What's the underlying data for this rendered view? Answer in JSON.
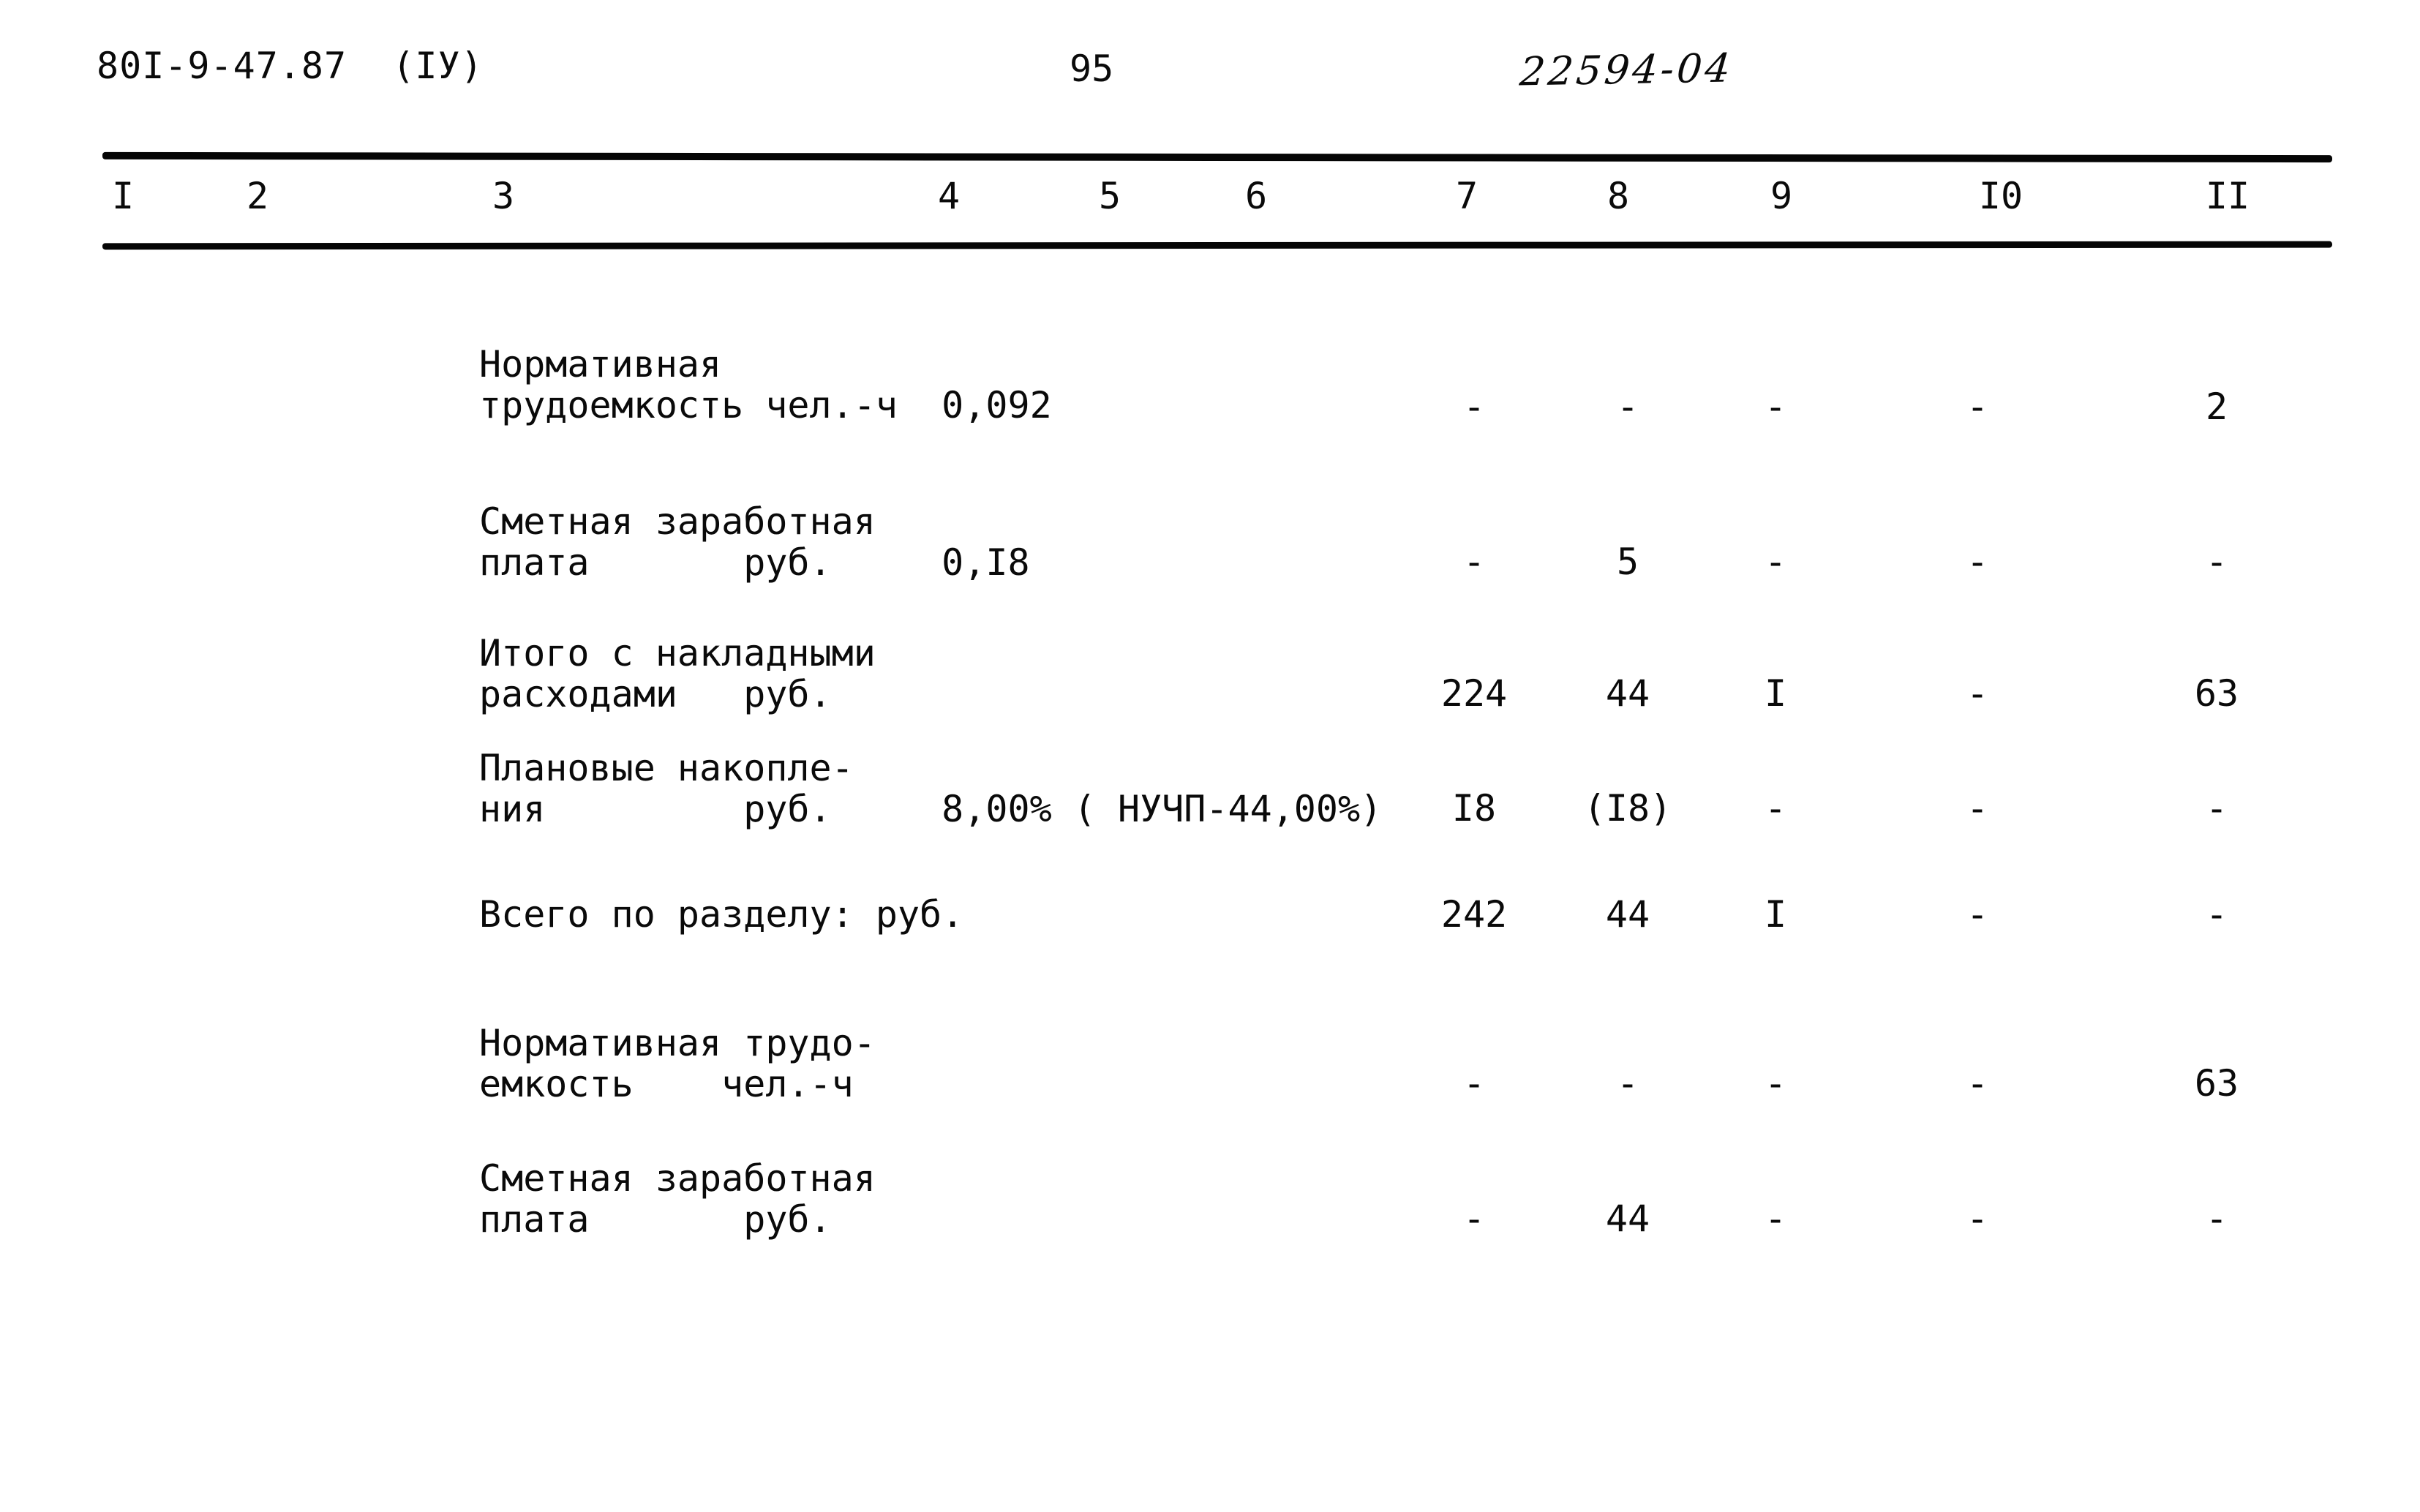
{
  "page": {
    "doc_number": "80I-9-47.87  (IУ)",
    "page_number": "95",
    "handwritten_code": "22594-04"
  },
  "table": {
    "column_headers": [
      "I",
      "2",
      "3",
      "4",
      "5",
      "6",
      "7",
      "8",
      "9",
      "I0",
      "II"
    ],
    "rows": [
      {
        "label_lines": [
          "Нормативная",
          "трудоемкость чел.-ч  0,092"
        ],
        "values": [
          "-",
          "-",
          "-",
          "-",
          "2"
        ]
      },
      {
        "label_lines": [
          "Сметная заработная",
          "плата       руб.     0,I8"
        ],
        "values": [
          "-",
          "5",
          "-",
          "-",
          "-"
        ]
      },
      {
        "label_lines": [
          "Итого с накладными",
          "расходами   руб."
        ],
        "values": [
          "224",
          "44",
          "I",
          "-",
          "63"
        ]
      },
      {
        "label_lines": [
          "Плановые накопле-",
          "ния         руб.     8,00% ( НУЧП-44,00%)"
        ],
        "values": [
          "I8",
          "(I8)",
          "-",
          "-",
          "-"
        ]
      },
      {
        "label_lines": [
          "Всего по разделу: руб."
        ],
        "values": [
          "242",
          "44",
          "I",
          "-",
          "-"
        ]
      },
      {
        "label_lines": [
          "Нормативная трудо-",
          "емкость    чел.-ч"
        ],
        "values": [
          "-",
          "-",
          "-",
          "-",
          "63"
        ]
      },
      {
        "label_lines": [
          "Сметная заработная",
          "плата       руб."
        ],
        "values": [
          "-",
          "44",
          "-",
          "-",
          "-"
        ]
      }
    ]
  }
}
